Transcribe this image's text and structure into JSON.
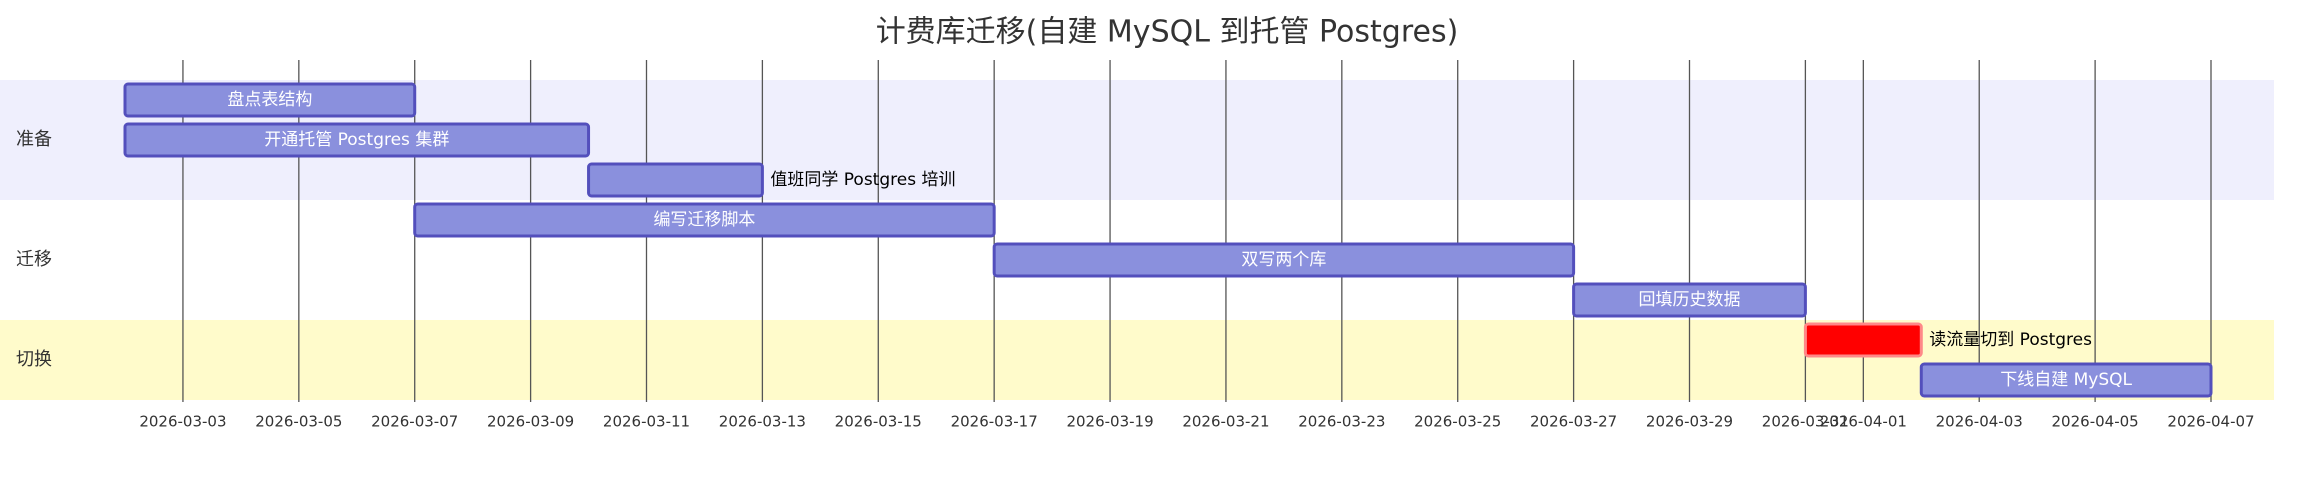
{
  "chart_data": {
    "type": "gantt",
    "title": "计费库迁移(自建 MySQL 到托管 Postgres)",
    "bar_color": "#8a90dd",
    "bar_stroke": "#534fbc",
    "crit_color": "#ff0000",
    "crit_stroke": "#ff8888",
    "xlim": [
      "2026-03-02",
      "2026-04-07"
    ],
    "xticks": [
      "2026-03-03",
      "2026-03-05",
      "2026-03-07",
      "2026-03-09",
      "2026-03-11",
      "2026-03-13",
      "2026-03-15",
      "2026-03-17",
      "2026-03-19",
      "2026-03-21",
      "2026-03-23",
      "2026-03-25",
      "2026-03-27",
      "2026-03-29",
      "2026-03-31",
      "2026-04-01",
      "2026-04-03",
      "2026-04-05",
      "2026-04-07"
    ],
    "grid": true,
    "sections": [
      {
        "name": "准备",
        "color": "#efeffd",
        "tasks": [
          {
            "name": "盘点表结构",
            "start": "2026-03-02",
            "end": "2026-03-07"
          },
          {
            "name": "开通托管 Postgres 集群",
            "start": "2026-03-02",
            "end": "2026-03-10"
          },
          {
            "name": "值班同学 Postgres 培训",
            "start": "2026-03-10",
            "end": "2026-03-13"
          }
        ]
      },
      {
        "name": "迁移",
        "color": "#ffffff",
        "tasks": [
          {
            "name": "编写迁移脚本",
            "start": "2026-03-07",
            "end": "2026-03-17"
          },
          {
            "name": "双写两个库",
            "start": "2026-03-17",
            "end": "2026-03-27"
          },
          {
            "name": "回填历史数据",
            "start": "2026-03-27",
            "end": "2026-03-31"
          }
        ]
      },
      {
        "name": "切换",
        "color": "#fffbcb",
        "tasks": [
          {
            "name": "读流量切到 Postgres",
            "start": "2026-03-31",
            "end": "2026-04-02",
            "crit": true
          },
          {
            "name": "下线自建 MySQL",
            "start": "2026-04-02",
            "end": "2026-04-07"
          }
        ]
      }
    ]
  }
}
